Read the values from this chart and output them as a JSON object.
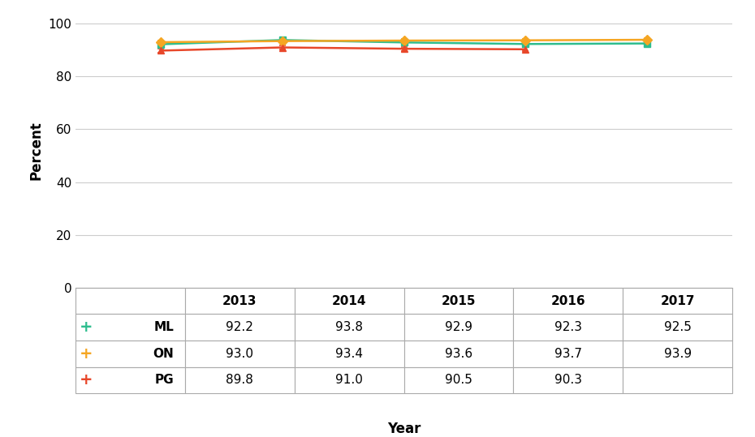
{
  "years": [
    2013,
    2014,
    2015,
    2016,
    2017
  ],
  "series": [
    {
      "label": "ML",
      "values": [
        92.2,
        93.8,
        92.9,
        92.3,
        92.5
      ],
      "errors": [
        0.8,
        0.8,
        0.8,
        0.8,
        0.8
      ],
      "color": "#2EBD8E",
      "marker": "s"
    },
    {
      "label": "ON",
      "values": [
        93.0,
        93.4,
        93.6,
        93.7,
        93.9
      ],
      "errors": [
        0.5,
        0.5,
        0.5,
        0.5,
        0.5
      ],
      "color": "#F5A623",
      "marker": "D"
    },
    {
      "label": "PG",
      "values": [
        89.8,
        91.0,
        90.5,
        90.3,
        null
      ],
      "errors": [
        0.8,
        0.8,
        0.8,
        0.8,
        null
      ],
      "color": "#E8472A",
      "marker": "^"
    }
  ],
  "ylabel": "Percent",
  "xlabel": "Year",
  "ylim": [
    0,
    104
  ],
  "yticks": [
    0,
    20,
    40,
    60,
    80,
    100
  ],
  "table_years": [
    "2013",
    "2014",
    "2015",
    "2016",
    "2017"
  ],
  "table_data": {
    "ML": [
      "92.2",
      "93.8",
      "92.9",
      "92.3",
      "92.5"
    ],
    "ON": [
      "93.0",
      "93.4",
      "93.6",
      "93.7",
      "93.9"
    ],
    "PG": [
      "89.8",
      "91.0",
      "90.5",
      "90.3",
      ""
    ]
  },
  "background_color": "#FFFFFF",
  "grid_color": "#CCCCCC"
}
